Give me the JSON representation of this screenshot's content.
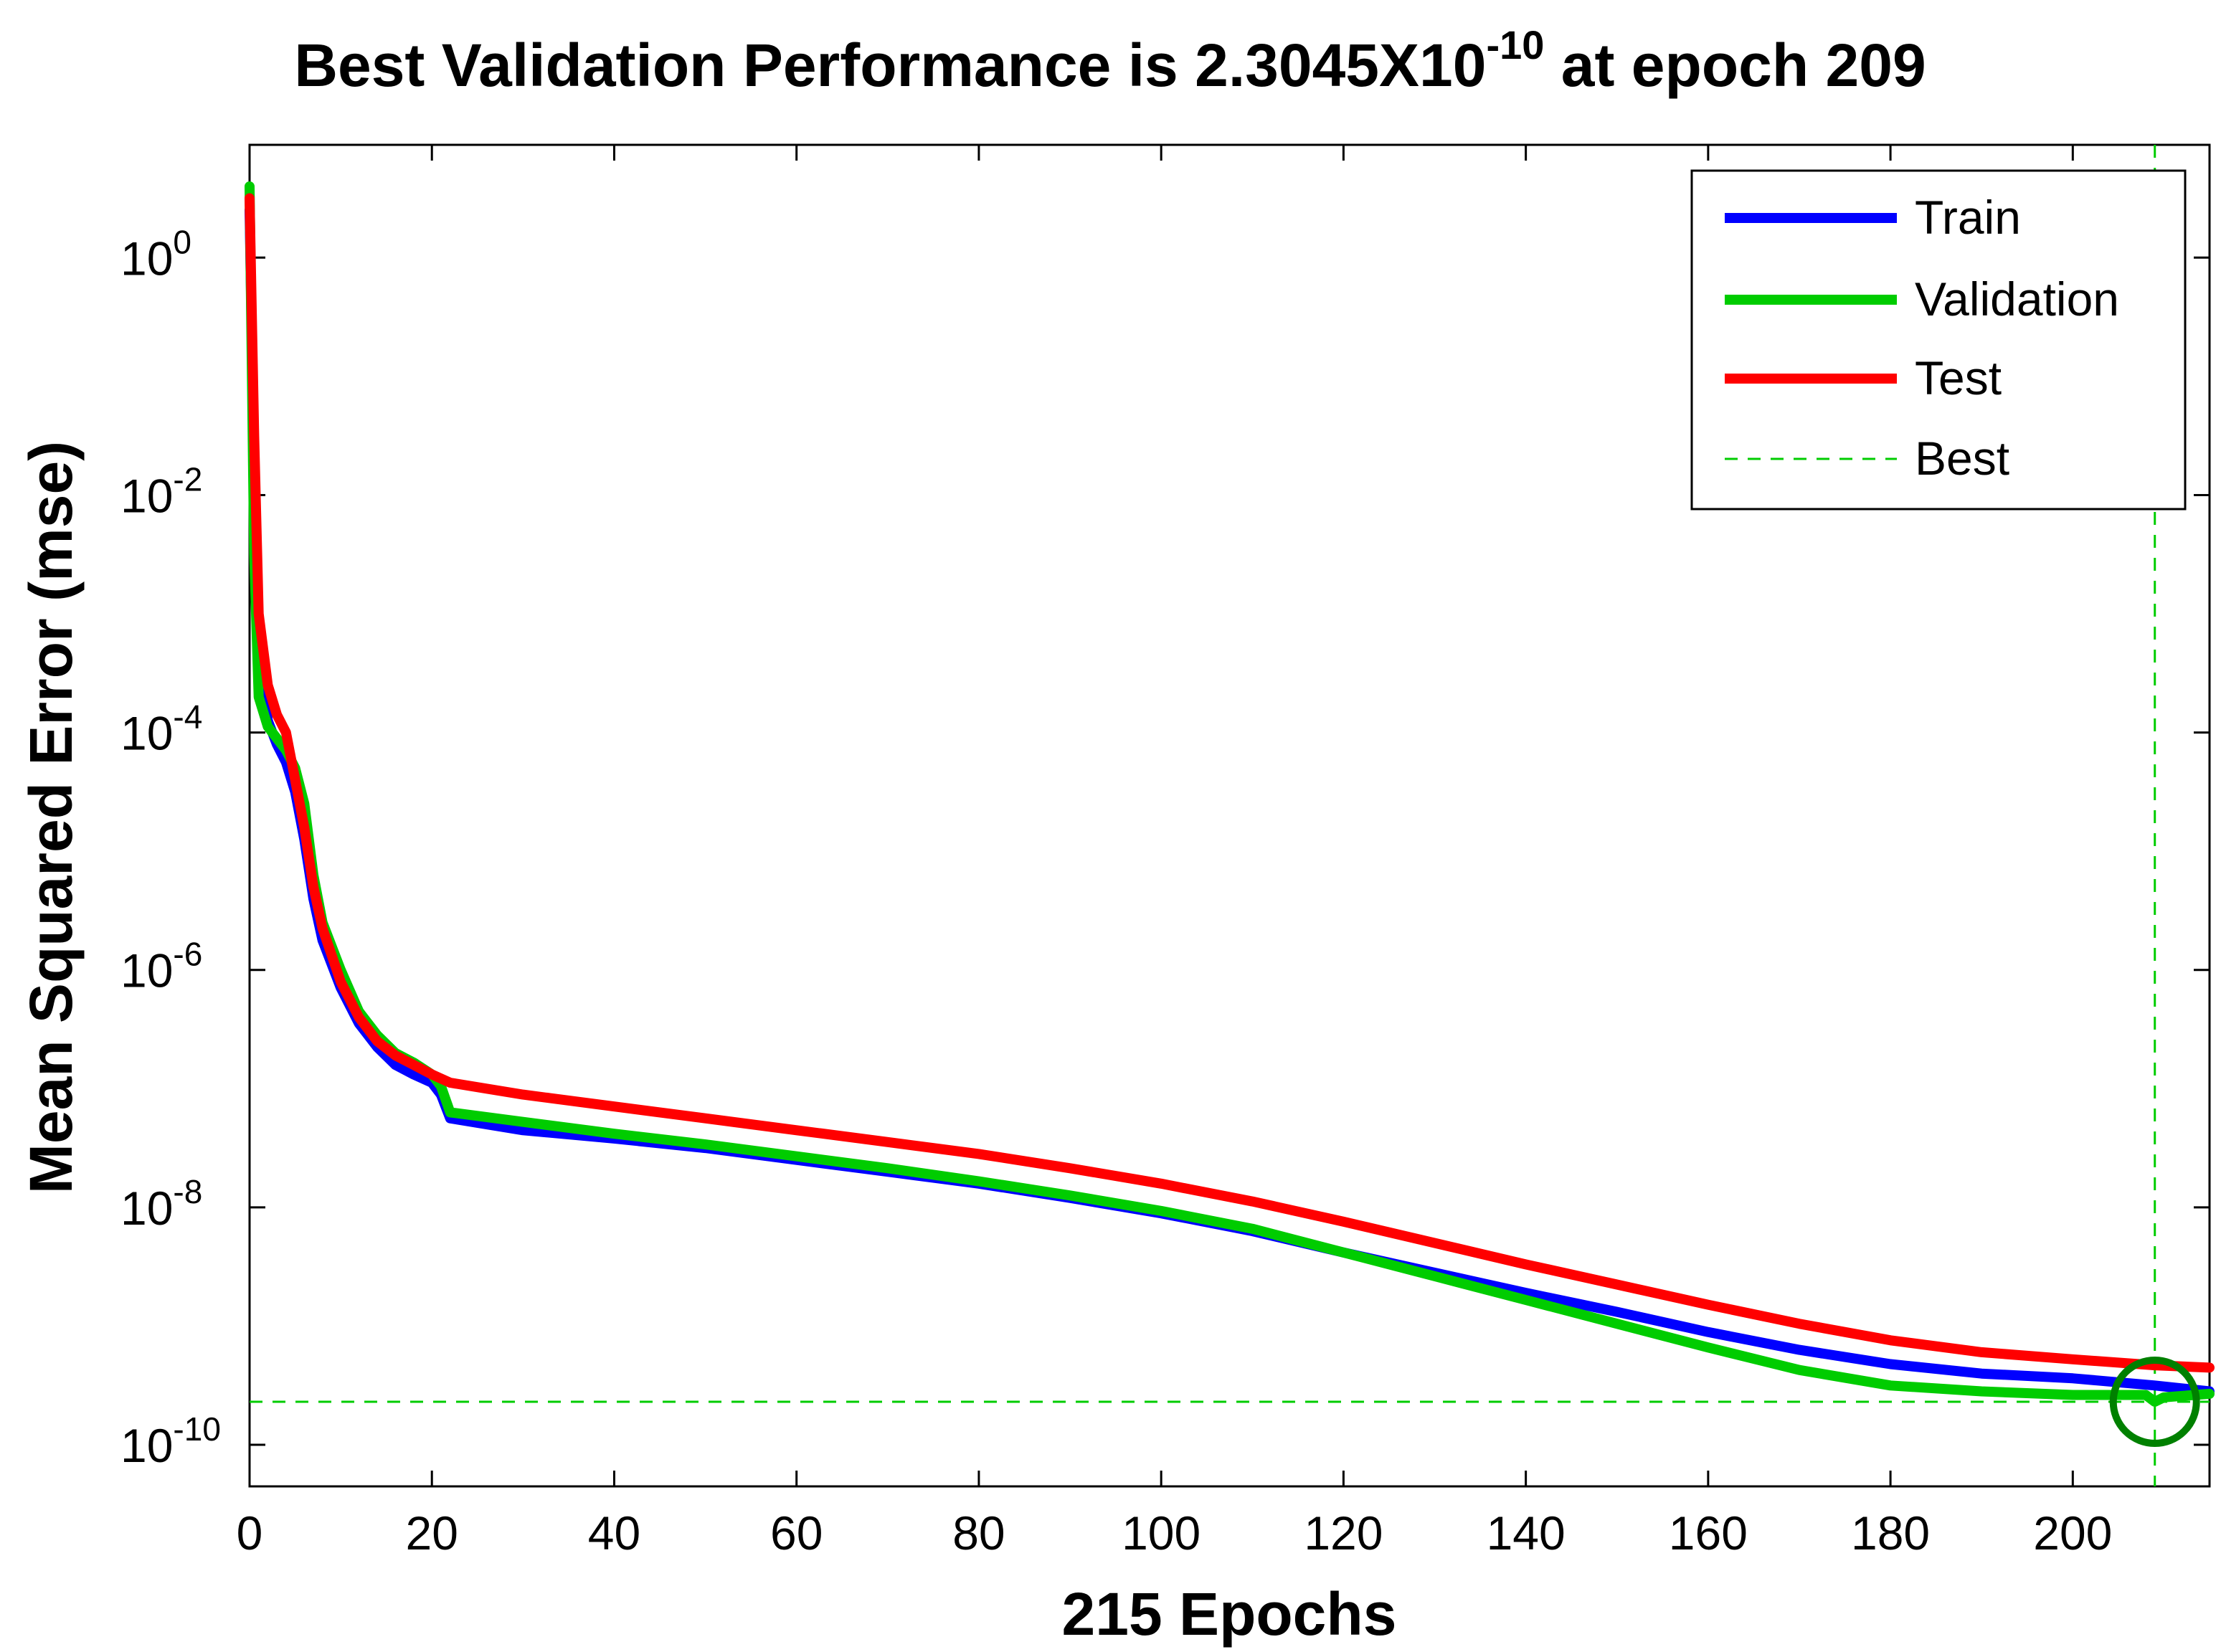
{
  "chart_data": {
    "type": "line",
    "y_scale": "log",
    "title": {
      "prefix": "Best Validation Performance is 2.3045X10",
      "exponent": "-10",
      "suffix": " at epoch 209"
    },
    "xlabel": "215 Epochs",
    "ylabel": "Mean Squared Error  (mse)",
    "xlim": [
      0,
      215
    ],
    "ylim_log10": [
      -10.35,
      0.95
    ],
    "x_ticks": [
      0,
      20,
      40,
      60,
      80,
      100,
      120,
      140,
      160,
      180,
      200
    ],
    "y_ticks": [
      {
        "exp": 0,
        "base": "10",
        "sup": "0"
      },
      {
        "exp": -2,
        "base": "10",
        "sup": "-2"
      },
      {
        "exp": -4,
        "base": "10",
        "sup": "-4"
      },
      {
        "exp": -6,
        "base": "10",
        "sup": "-6"
      },
      {
        "exp": -8,
        "base": "10",
        "sup": "-8"
      },
      {
        "exp": -10,
        "base": "10",
        "sup": "-10"
      }
    ],
    "legend": {
      "position": "top-right",
      "entries": [
        "Train",
        "Validation",
        "Test",
        "Best"
      ]
    },
    "best": {
      "epoch": 209,
      "value_log10": -9.6374,
      "label": "Best"
    },
    "series": [
      {
        "name": "Train",
        "color": "#0000ff",
        "points": [
          [
            0,
            0.4
          ],
          [
            0.5,
            -1.8
          ],
          [
            1,
            -3.3
          ],
          [
            2,
            -3.9
          ],
          [
            3,
            -4.1
          ],
          [
            4,
            -4.25
          ],
          [
            5,
            -4.5
          ],
          [
            6,
            -4.9
          ],
          [
            7,
            -5.4
          ],
          [
            8,
            -5.75
          ],
          [
            10,
            -6.15
          ],
          [
            12,
            -6.45
          ],
          [
            14,
            -6.65
          ],
          [
            16,
            -6.8
          ],
          [
            18,
            -6.88
          ],
          [
            20,
            -6.95
          ],
          [
            21,
            -7.05
          ],
          [
            22,
            -7.25
          ],
          [
            30,
            -7.35
          ],
          [
            40,
            -7.42
          ],
          [
            50,
            -7.5
          ],
          [
            60,
            -7.6
          ],
          [
            70,
            -7.7
          ],
          [
            80,
            -7.8
          ],
          [
            90,
            -7.92
          ],
          [
            100,
            -8.05
          ],
          [
            110,
            -8.2
          ],
          [
            120,
            -8.38
          ],
          [
            130,
            -8.55
          ],
          [
            140,
            -8.72
          ],
          [
            150,
            -8.88
          ],
          [
            160,
            -9.05
          ],
          [
            170,
            -9.2
          ],
          [
            180,
            -9.32
          ],
          [
            190,
            -9.4
          ],
          [
            200,
            -9.44
          ],
          [
            209,
            -9.5
          ],
          [
            215,
            -9.55
          ]
        ]
      },
      {
        "name": "Validation",
        "color": "#00cc00",
        "points": [
          [
            0,
            0.6
          ],
          [
            0.5,
            -2.5
          ],
          [
            1,
            -3.7
          ],
          [
            2,
            -3.95
          ],
          [
            3,
            -4.05
          ],
          [
            4,
            -4.15
          ],
          [
            5,
            -4.3
          ],
          [
            6,
            -4.6
          ],
          [
            7,
            -5.2
          ],
          [
            8,
            -5.6
          ],
          [
            10,
            -6.0
          ],
          [
            12,
            -6.35
          ],
          [
            14,
            -6.55
          ],
          [
            16,
            -6.7
          ],
          [
            18,
            -6.78
          ],
          [
            20,
            -6.88
          ],
          [
            21,
            -6.98
          ],
          [
            22,
            -7.2
          ],
          [
            30,
            -7.28
          ],
          [
            40,
            -7.38
          ],
          [
            50,
            -7.47
          ],
          [
            60,
            -7.57
          ],
          [
            70,
            -7.67
          ],
          [
            80,
            -7.78
          ],
          [
            90,
            -7.9
          ],
          [
            100,
            -8.03
          ],
          [
            110,
            -8.18
          ],
          [
            120,
            -8.38
          ],
          [
            130,
            -8.58
          ],
          [
            140,
            -8.78
          ],
          [
            150,
            -8.98
          ],
          [
            160,
            -9.18
          ],
          [
            170,
            -9.37
          ],
          [
            180,
            -9.5
          ],
          [
            190,
            -9.55
          ],
          [
            200,
            -9.58
          ],
          [
            208,
            -9.58
          ],
          [
            209,
            -9.6374
          ],
          [
            210,
            -9.6
          ],
          [
            215,
            -9.57
          ]
        ]
      },
      {
        "name": "Test",
        "color": "#ff0000",
        "points": [
          [
            0,
            0.5
          ],
          [
            0.5,
            -1.5
          ],
          [
            1,
            -3.0
          ],
          [
            2,
            -3.6
          ],
          [
            3,
            -3.85
          ],
          [
            4,
            -4.0
          ],
          [
            5,
            -4.4
          ],
          [
            6,
            -4.8
          ],
          [
            7,
            -5.3
          ],
          [
            8,
            -5.65
          ],
          [
            10,
            -6.1
          ],
          [
            12,
            -6.4
          ],
          [
            14,
            -6.6
          ],
          [
            16,
            -6.72
          ],
          [
            18,
            -6.8
          ],
          [
            20,
            -6.88
          ],
          [
            22,
            -6.95
          ],
          [
            30,
            -7.05
          ],
          [
            40,
            -7.15
          ],
          [
            50,
            -7.25
          ],
          [
            60,
            -7.35
          ],
          [
            70,
            -7.45
          ],
          [
            80,
            -7.55
          ],
          [
            90,
            -7.67
          ],
          [
            100,
            -7.8
          ],
          [
            110,
            -7.95
          ],
          [
            120,
            -8.12
          ],
          [
            130,
            -8.3
          ],
          [
            140,
            -8.48
          ],
          [
            150,
            -8.65
          ],
          [
            160,
            -8.82
          ],
          [
            170,
            -8.98
          ],
          [
            180,
            -9.12
          ],
          [
            190,
            -9.22
          ],
          [
            200,
            -9.28
          ],
          [
            209,
            -9.33
          ],
          [
            215,
            -9.35
          ]
        ]
      }
    ]
  }
}
